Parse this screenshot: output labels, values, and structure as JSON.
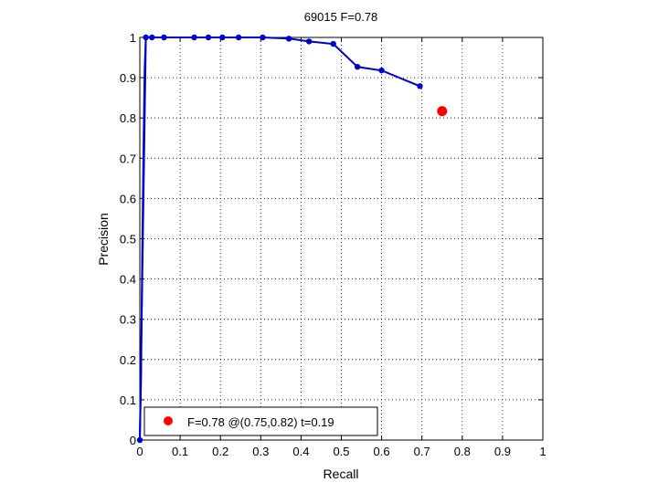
{
  "chart_data": {
    "type": "line",
    "title": "69015 F=0.78",
    "xlabel": "Recall",
    "ylabel": "Precision",
    "xlim": [
      0,
      1
    ],
    "ylim": [
      0,
      1
    ],
    "xticks": [
      0,
      0.1,
      0.2,
      0.3,
      0.4,
      0.5,
      0.6,
      0.7,
      0.8,
      0.9,
      1
    ],
    "yticks": [
      0,
      0.1,
      0.2,
      0.3,
      0.4,
      0.5,
      0.6,
      0.7,
      0.8,
      0.9,
      1
    ],
    "xtick_labels": [
      "0",
      "0.1",
      "0.2",
      "0.3",
      "0.4",
      "0.5",
      "0.6",
      "0.7",
      "0.8",
      "0.9",
      "1"
    ],
    "ytick_labels": [
      "0",
      "0.1",
      "0.2",
      "0.3",
      "0.4",
      "0.5",
      "0.6",
      "0.7",
      "0.8",
      "0.9",
      "1"
    ],
    "grid": true,
    "grid_style": "dotted",
    "series": [
      {
        "color": "#0000cc",
        "marker": "dot",
        "x": [
          0.0,
          0.015,
          0.03,
          0.06,
          0.135,
          0.17,
          0.205,
          0.245,
          0.305,
          0.37,
          0.42,
          0.48,
          0.54,
          0.6,
          0.695
        ],
        "y": [
          0.0,
          1.0,
          1.0,
          1.0,
          1.0,
          1.0,
          1.0,
          1.0,
          1.0,
          0.997,
          0.99,
          0.984,
          0.927,
          0.918,
          0.879
        ]
      },
      {
        "color": "#0000cc",
        "marker": "none",
        "x": [
          0.0,
          0.003,
          0.006,
          0.009,
          0.012,
          0.015
        ],
        "y": [
          0.0,
          0.15,
          0.45,
          0.72,
          0.92,
          1.0
        ]
      }
    ],
    "best_point": {
      "x": 0.75,
      "y": 0.817,
      "color": "#ff0000"
    },
    "legend": {
      "placement": "bottom-left",
      "entries": [
        {
          "label": "F=0.78 @(0.75,0.82) t=0.19",
          "color": "#ff0000",
          "marker": "dot"
        }
      ]
    }
  }
}
